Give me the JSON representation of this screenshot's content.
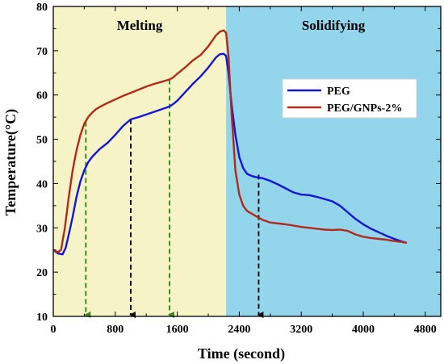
{
  "chart_data": {
    "type": "line",
    "xlabel": "Time (second)",
    "ylabel": "Temperature(°C)",
    "xlim": [
      0,
      5000
    ],
    "ylim": [
      10,
      80
    ],
    "x_ticks": [
      0,
      800,
      1600,
      2400,
      3200,
      4000,
      4800
    ],
    "y_ticks": [
      10,
      20,
      30,
      40,
      50,
      60,
      70,
      80
    ],
    "grid": false,
    "legend_position": "center-right",
    "regions": [
      {
        "label": "Melting",
        "x_start": 0,
        "x_end": 2230,
        "color": "#f6f3c6"
      },
      {
        "label": "Solidifying",
        "x_start": 2230,
        "x_end": 5000,
        "color": "#93d6ec"
      }
    ],
    "series": [
      {
        "name": "PEG",
        "color": "#1515d8",
        "x": [
          0,
          60,
          120,
          160,
          200,
          250,
          300,
          350,
          400,
          450,
          500,
          600,
          700,
          800,
          900,
          1000,
          1100,
          1200,
          1300,
          1400,
          1500,
          1550,
          1600,
          1700,
          1800,
          1900,
          2000,
          2100,
          2150,
          2200,
          2230,
          2260,
          2300,
          2350,
          2400,
          2450,
          2500,
          2550,
          2600,
          2700,
          2800,
          2900,
          3000,
          3100,
          3200,
          3300,
          3400,
          3500,
          3600,
          3700,
          3800,
          3900,
          4000,
          4100,
          4200,
          4300,
          4400,
          4500,
          4560
        ],
        "y": [
          25,
          24.2,
          24,
          25.5,
          28.5,
          32.5,
          37,
          40.5,
          43,
          44.8,
          46,
          47.8,
          49.2,
          51,
          53,
          54.5,
          55,
          55.6,
          56.2,
          56.8,
          57.4,
          58,
          58.7,
          60.6,
          62.5,
          64.2,
          66.2,
          68.5,
          69.2,
          69.3,
          68.8,
          65,
          58,
          51,
          46,
          43.5,
          42.2,
          41.8,
          41.5,
          41.2,
          40.6,
          39.8,
          38.9,
          38,
          37.5,
          37.4,
          37,
          36.5,
          36,
          35,
          33.5,
          32,
          30.8,
          29.8,
          29,
          28.2,
          27.5,
          26.9,
          26.6
        ]
      },
      {
        "name": "PEG/GNPs-2%",
        "color": "#b22a1a",
        "x": [
          0,
          60,
          100,
          150,
          200,
          250,
          300,
          350,
          400,
          450,
          500,
          550,
          600,
          700,
          800,
          900,
          1000,
          1100,
          1200,
          1300,
          1400,
          1500,
          1550,
          1600,
          1700,
          1800,
          1900,
          2000,
          2100,
          2150,
          2200,
          2230,
          2260,
          2300,
          2350,
          2400,
          2450,
          2500,
          2600,
          2700,
          2800,
          2900,
          3000,
          3100,
          3200,
          3300,
          3400,
          3500,
          3600,
          3700,
          3800,
          3900,
          4000,
          4100,
          4200,
          4300,
          4400,
          4500,
          4560
        ],
        "y": [
          25,
          24.5,
          25,
          30,
          37,
          43,
          47.5,
          51,
          53.5,
          55,
          56,
          56.8,
          57.3,
          58.2,
          59,
          59.8,
          60.5,
          61.2,
          61.9,
          62.5,
          63,
          63.5,
          64,
          64.8,
          66.2,
          67.8,
          69,
          71,
          73.5,
          74.3,
          74.6,
          74,
          69,
          56,
          43,
          37.5,
          35,
          33.8,
          32.8,
          31.8,
          31.2,
          31,
          30.8,
          30.5,
          30.2,
          30,
          29.8,
          29.6,
          29.5,
          29.6,
          29.3,
          28.5,
          28,
          27.7,
          27.5,
          27.3,
          27,
          26.8,
          26.6
        ]
      }
    ],
    "guide_lines": [
      {
        "x": 420,
        "y_top": 54,
        "color": "#3d8a1e"
      },
      {
        "x": 1000,
        "y_top": 54.5,
        "color": "#111111"
      },
      {
        "x": 1500,
        "y_top": 63.5,
        "color": "#3d8a1e"
      },
      {
        "x": 2650,
        "y_top": 42,
        "color": "#111111"
      }
    ]
  }
}
